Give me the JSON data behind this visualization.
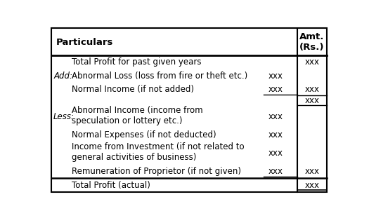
{
  "title": "Particulars",
  "col2_header": "Amt.\n(Rs.)",
  "background": "#ffffff",
  "rows": [
    {
      "label": "Total Profit for past given years",
      "prefix": "",
      "col1": "",
      "col2": "xxx"
    },
    {
      "label": "Abnormal Loss (loss from fire or theft etc.)",
      "prefix": "Add:",
      "col1": "xxx",
      "col2": ""
    },
    {
      "label": "Normal Income (if not added)",
      "prefix": "",
      "col1": "xxx",
      "col2": "xxx",
      "underline_col1": true
    },
    {
      "label": "",
      "prefix": "",
      "col1": "",
      "col2": "xxx",
      "spacer": true
    },
    {
      "label": "Abnormal Income (income from\nspeculation or lottery etc.)",
      "prefix": "Less:",
      "col1": "xxx",
      "col2": "",
      "multiline": true
    },
    {
      "label": "Normal Expenses (if not deducted)",
      "prefix": "",
      "col1": "xxx",
      "col2": ""
    },
    {
      "label": "Income from Investment (if not related to\ngeneral activities of business)",
      "prefix": "",
      "col1": "xxx",
      "col2": "",
      "multiline": true
    },
    {
      "label": "Remuneration of Proprietor (if not given)",
      "prefix": "",
      "col1": "xxx",
      "col2": "xxx",
      "underline_col1": true
    },
    {
      "label": "Total Profit (actual)",
      "prefix": "",
      "col1": "",
      "col2": "xxx",
      "final_row": true
    }
  ],
  "font_size": 8.5,
  "header_font_size": 9.5
}
